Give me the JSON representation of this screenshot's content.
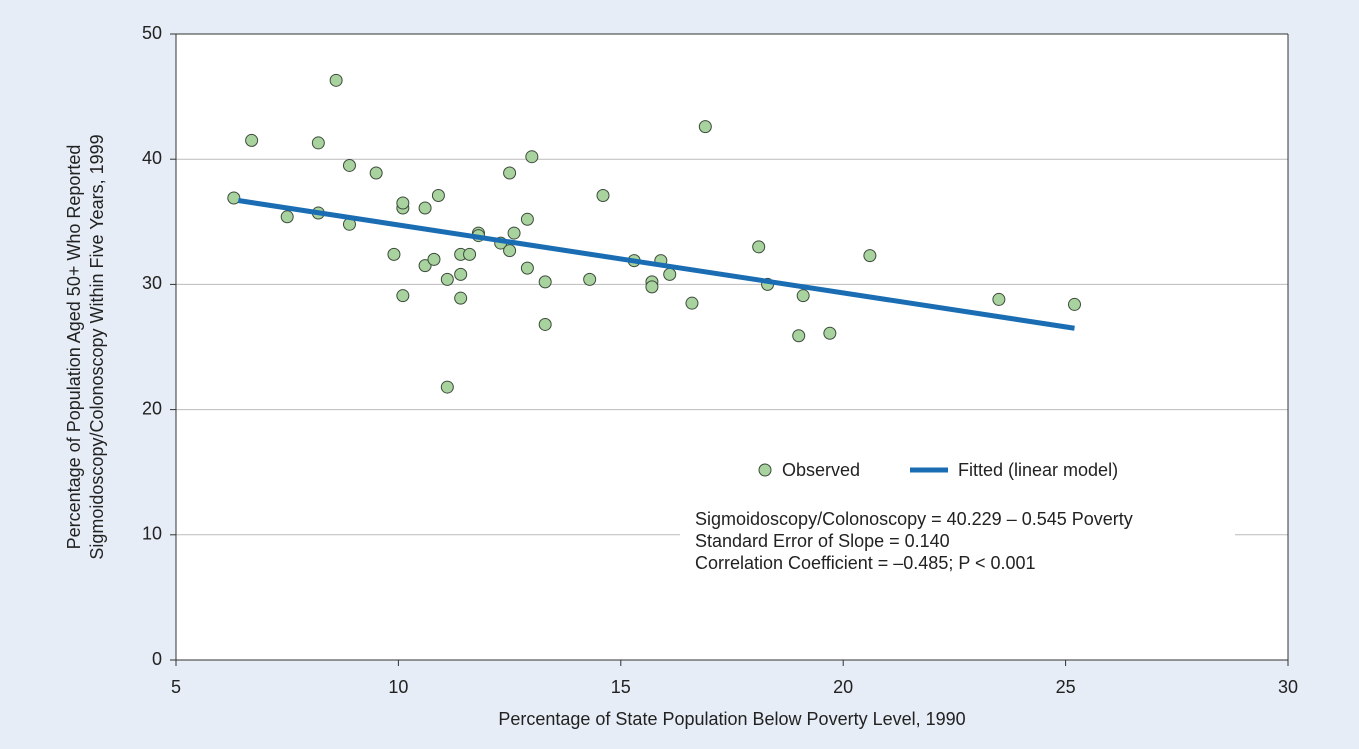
{
  "chart_data": {
    "type": "scatter",
    "xlabel": "Percentage of State Population Below Poverty Level, 1990",
    "ylabel": [
      "Percentage of Population Aged 50+ Who Reported",
      "Sigmoidoscopy/Colonoscopy Within Five Years, 1999"
    ],
    "xlim": [
      5,
      30
    ],
    "xticks": [
      5,
      10,
      15,
      20,
      25,
      30
    ],
    "ylim": [
      0,
      50
    ],
    "yticks": [
      0,
      10,
      20,
      30,
      40,
      50
    ],
    "grid": true,
    "series": [
      {
        "name": "Observed",
        "type": "scatter",
        "color": "#a9d39e",
        "x": [
          6.3,
          6.7,
          7.5,
          8.2,
          8.2,
          8.6,
          8.9,
          8.9,
          9.5,
          9.9,
          10.1,
          10.1,
          10.1,
          10.6,
          10.6,
          10.8,
          10.9,
          11.1,
          11.1,
          11.4,
          11.4,
          11.4,
          11.6,
          11.8,
          11.8,
          12.3,
          12.5,
          12.5,
          12.6,
          12.9,
          12.9,
          13.0,
          13.3,
          13.3,
          14.3,
          14.6,
          15.3,
          15.7,
          15.7,
          15.9,
          16.1,
          16.6,
          16.9,
          18.1,
          18.3,
          19.0,
          19.1,
          19.7,
          20.6,
          23.5,
          25.2
        ],
        "values": [
          36.9,
          41.5,
          35.4,
          41.3,
          35.7,
          46.3,
          34.8,
          39.5,
          38.9,
          32.4,
          36.1,
          36.5,
          29.1,
          36.1,
          31.5,
          32.0,
          37.1,
          30.4,
          21.8,
          32.4,
          30.8,
          28.9,
          32.4,
          34.1,
          33.9,
          33.3,
          32.7,
          38.9,
          34.1,
          35.2,
          31.3,
          40.2,
          30.2,
          26.8,
          30.4,
          37.1,
          31.9,
          30.2,
          29.8,
          31.9,
          30.8,
          28.5,
          42.6,
          33.0,
          30.0,
          25.9,
          29.1,
          26.1,
          32.3,
          28.8,
          28.4
        ]
      },
      {
        "name": "Fitted (linear model)",
        "type": "line",
        "color": "#1a6db3",
        "x": [
          6.4,
          25.2
        ],
        "values": [
          36.7,
          26.5
        ]
      }
    ],
    "annotations": [
      "Sigmoidoscopy/Colonoscopy = 40.229 – 0.545 Poverty",
      "Standard Error of Slope = 0.140",
      "Correlation Coefficient = –0.485; P < 0.001"
    ]
  }
}
